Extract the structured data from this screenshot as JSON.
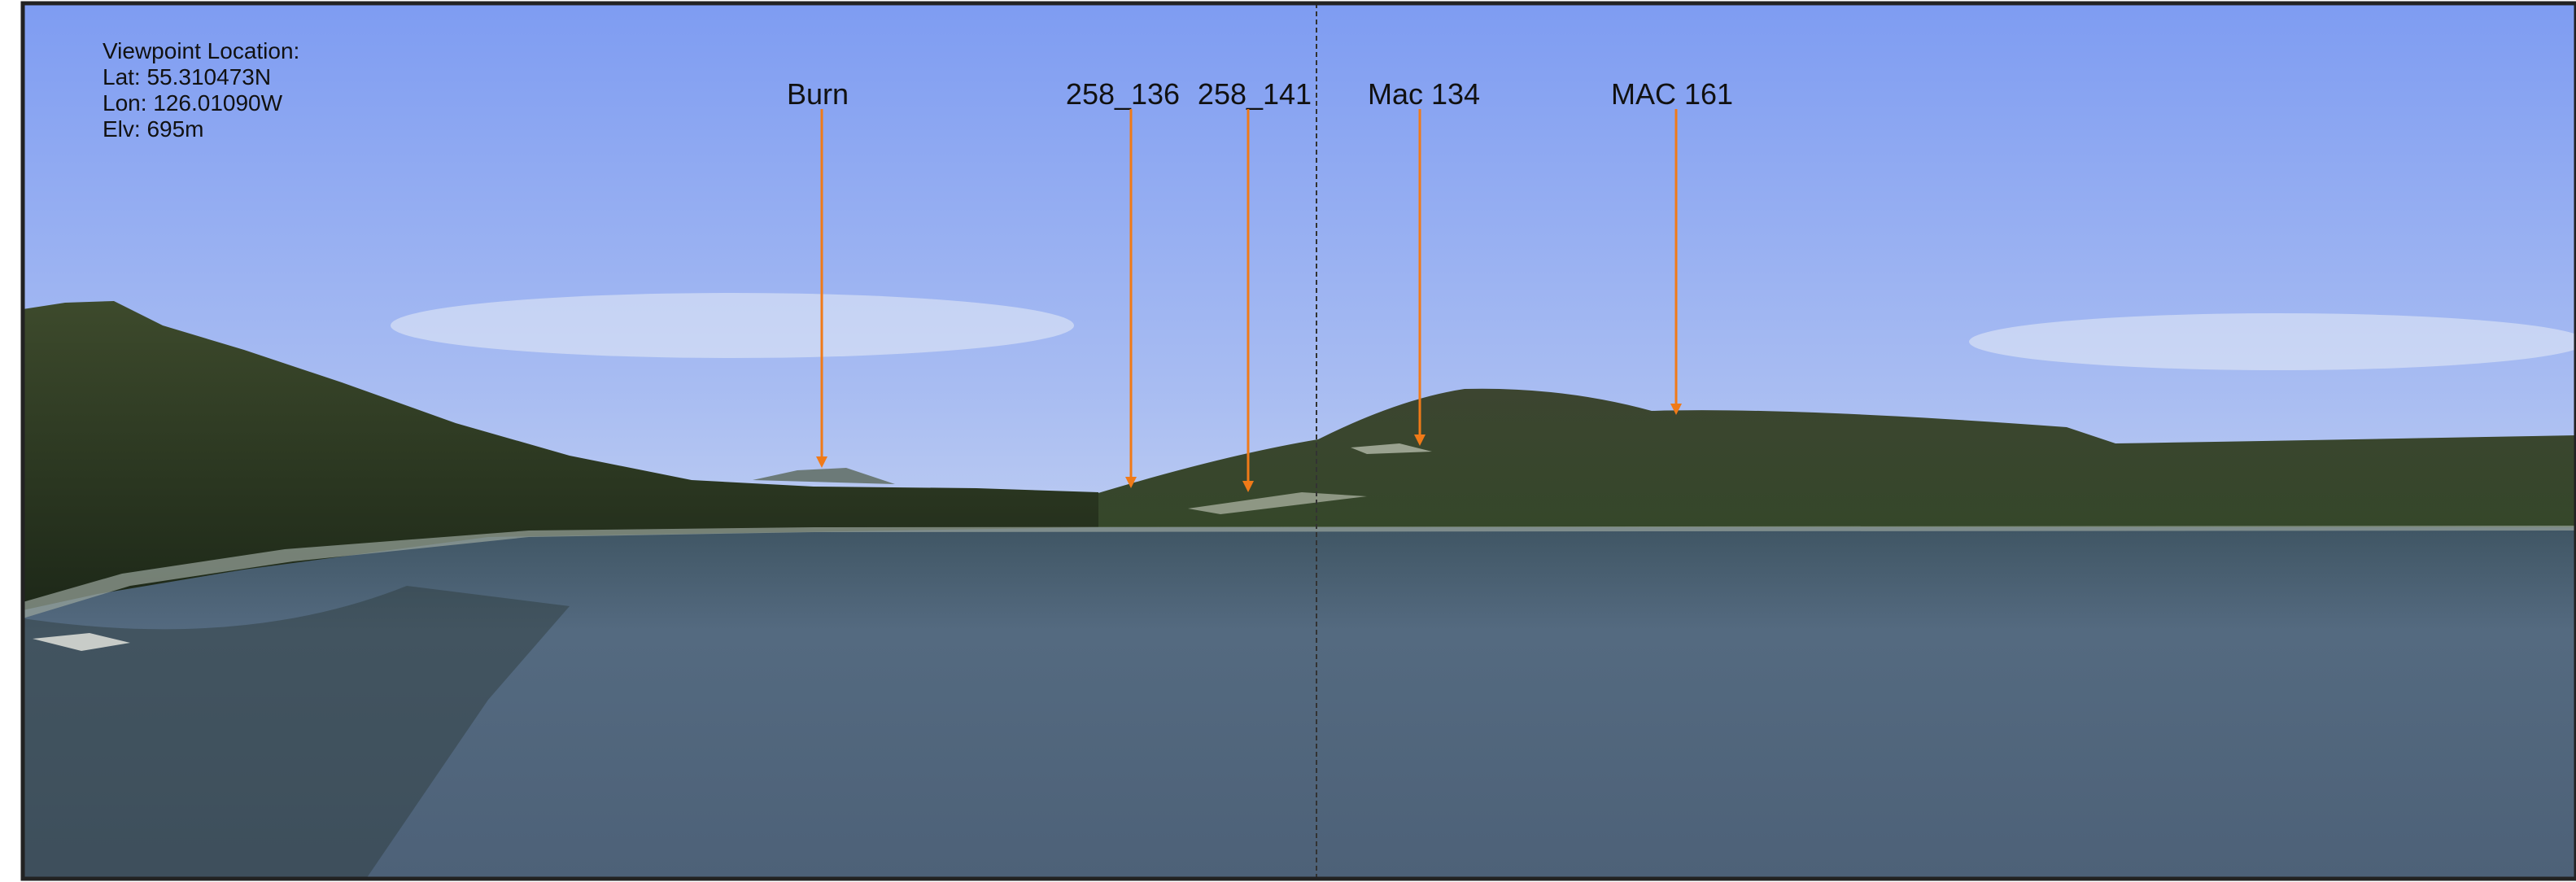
{
  "viewpoint": {
    "lines": [
      "Viewpoint Location:",
      "Lat:  55.310473N",
      "Lon: 126.01090W",
      "Elv:  695m"
    ]
  },
  "labels": [
    "Burn",
    "258_136",
    "258_141",
    "Mac 134",
    "MAC 161"
  ]
}
